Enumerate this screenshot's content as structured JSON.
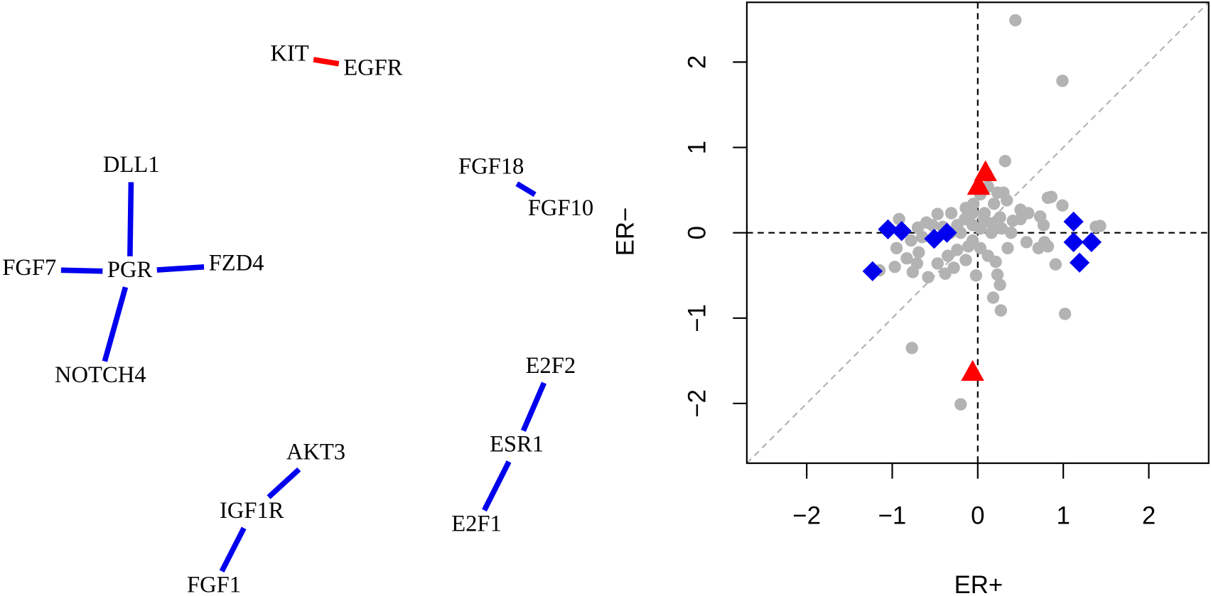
{
  "network": {
    "nodes": [
      "KIT",
      "EGFR",
      "DLL1",
      "PGR",
      "FGF7",
      "FZD4",
      "NOTCH4",
      "FGF18",
      "FGF10",
      "E2F2",
      "ESR1",
      "E2F1",
      "AKT3",
      "IGF1R",
      "FGF1"
    ],
    "edges": [
      {
        "source": "KIT",
        "target": "EGFR",
        "color": "#ff0000"
      },
      {
        "source": "DLL1",
        "target": "PGR",
        "color": "#0000ee"
      },
      {
        "source": "FGF7",
        "target": "PGR",
        "color": "#0000ee"
      },
      {
        "source": "FZD4",
        "target": "PGR",
        "color": "#0000ee"
      },
      {
        "source": "NOTCH4",
        "target": "PGR",
        "color": "#0000ee"
      },
      {
        "source": "FGF18",
        "target": "FGF10",
        "color": "#0000ee"
      },
      {
        "source": "E2F2",
        "target": "ESR1",
        "color": "#0000ee"
      },
      {
        "source": "ESR1",
        "target": "E2F1",
        "color": "#0000ee"
      },
      {
        "source": "AKT3",
        "target": "IGF1R",
        "color": "#0000ee"
      },
      {
        "source": "IGF1R",
        "target": "FGF1",
        "color": "#0000ee"
      }
    ]
  },
  "chart_data": {
    "type": "scatter",
    "x_label": "ER+",
    "y_label": "ER−",
    "xlim": [
      -2.7,
      2.7
    ],
    "ylim": [
      -2.7,
      2.7
    ],
    "xticks": [
      {
        "value": -2,
        "label": "−2"
      },
      {
        "value": -1,
        "label": "−1"
      },
      0,
      1,
      2
    ],
    "yticks": [
      {
        "value": -2,
        "label": "−2"
      },
      {
        "value": -1,
        "label": "−1"
      },
      0,
      1,
      2
    ],
    "hline": 0,
    "vline": 0,
    "diagonal": true,
    "series": [
      {
        "color": "#b3b3b3",
        "marker": "circle",
        "x": [
          0.44,
          0.99,
          0.32,
          -0.77,
          -0.2,
          1.02,
          0.27,
          0.18,
          0.26,
          -0.02,
          0.23,
          -0.38,
          -0.58,
          -0.76,
          -0.97,
          -1.15,
          -0.92,
          -0.6,
          -0.47,
          -0.31,
          -0.14,
          -0.05,
          0.03,
          0.12,
          0.23,
          0.3,
          0.34,
          0.19,
          0.08,
          0.26,
          0.41,
          0.5,
          0.59,
          0.5,
          0.86,
          0.73,
          0.77,
          0.99,
          0.82,
          0.57,
          0.71,
          0.82,
          0.91,
          0.78,
          0.35,
          0.12,
          0.21,
          0.03,
          -0.11,
          -0.24,
          -0.35,
          -0.47,
          -0.28,
          -0.14,
          -0.06,
          -0.2,
          -0.32,
          -0.41,
          -0.53,
          -0.65,
          -0.78,
          -0.83,
          -0.71,
          -0.06,
          0.03,
          0.16,
          0.28,
          0.39,
          0.16,
          0.07,
          -0.15,
          -0.24,
          -0.06,
          -0.7,
          -0.69,
          -0.95,
          1.38,
          1.43
        ],
        "values": [
          2.49,
          1.78,
          0.84,
          -1.35,
          -2.01,
          -0.95,
          -0.91,
          -0.76,
          -0.61,
          -0.5,
          -0.49,
          -0.48,
          -0.52,
          -0.46,
          -0.4,
          -0.44,
          0.16,
          0.12,
          0.22,
          0.23,
          0.29,
          0.34,
          0.45,
          0.54,
          0.47,
          0.47,
          0.38,
          0.34,
          0.23,
          0.18,
          0.14,
          0.16,
          0.23,
          0.27,
          0.42,
          0.19,
          0.09,
          0.32,
          0.41,
          -0.11,
          -0.18,
          -0.16,
          -0.37,
          -0.11,
          -0.18,
          -0.27,
          -0.34,
          -0.18,
          -0.16,
          -0.2,
          -0.27,
          -0.36,
          -0.41,
          -0.32,
          -0.09,
          0.0,
          0.0,
          0.07,
          0.09,
          -0.05,
          -0.09,
          -0.3,
          -0.36,
          0.09,
          0.05,
          0.0,
          0.05,
          0.0,
          0.11,
          0.16,
          0.16,
          0.09,
          0.23,
          0.06,
          -0.23,
          -0.18,
          0.07,
          0.08
        ]
      },
      {
        "color": "#0000ee",
        "marker": "diamond",
        "x": [
          -1.23,
          -1.05,
          -0.89,
          -0.51,
          -0.36,
          1.12,
          1.12,
          1.33,
          1.19
        ],
        "values": [
          -0.45,
          0.04,
          0.02,
          -0.07,
          0.0,
          0.13,
          -0.11,
          -0.11,
          -0.35
        ]
      },
      {
        "color": "#ff0000",
        "marker": "triangle",
        "x": [
          0.09,
          0.01,
          -0.06
        ],
        "values": [
          0.7,
          0.54,
          -1.64
        ]
      }
    ]
  }
}
